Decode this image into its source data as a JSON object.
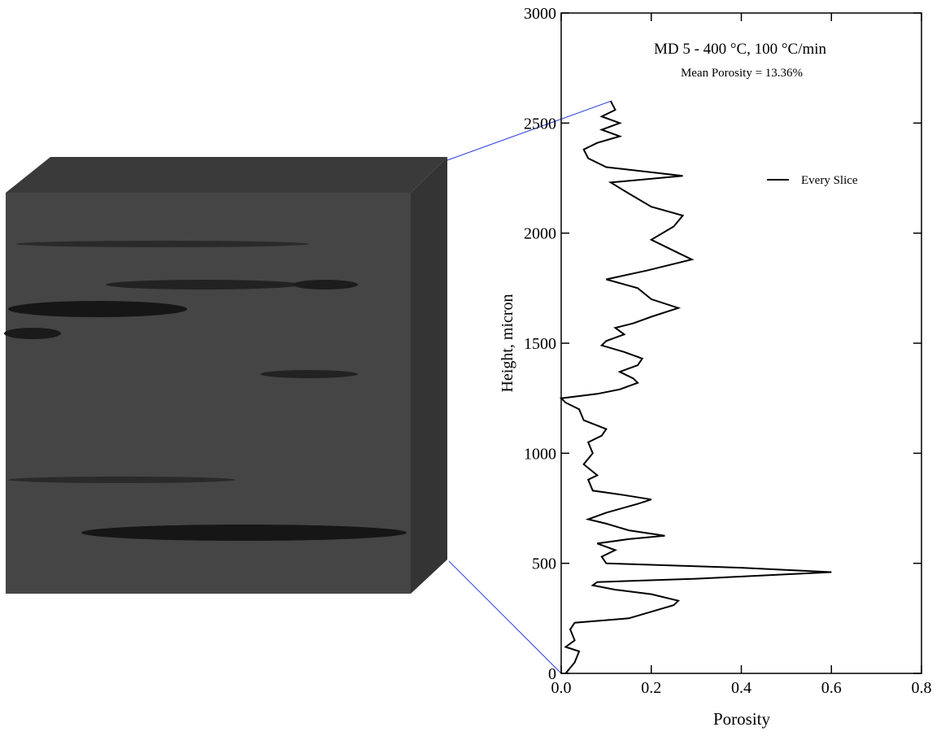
{
  "chart_data": {
    "type": "line",
    "title": "MD 5 - 400 °C, 100 °C/min",
    "subtitle": "Mean Porosity = 13.36%",
    "x_label": "Porosity",
    "y_label": "Height, micron",
    "xlim": [
      0,
      0.8
    ],
    "xticks": [
      {
        "value": 0,
        "label": "0.0"
      },
      0.2,
      0.4,
      0.6,
      0.8
    ],
    "ylim": [
      0,
      3000
    ],
    "yticks": [
      0,
      500,
      1000,
      1500,
      2000,
      2500,
      3000
    ],
    "legend": "right",
    "series": [
      {
        "name": "Every Slice",
        "color": "#000000",
        "x": [
          0.01,
          0.03,
          0.04,
          0.01,
          0.03,
          0.02,
          0.03,
          0.15,
          0.2,
          0.25,
          0.26,
          0.2,
          0.12,
          0.07,
          0.08,
          0.3,
          0.6,
          0.4,
          0.1,
          0.09,
          0.12,
          0.08,
          0.15,
          0.23,
          0.15,
          0.1,
          0.06,
          0.1,
          0.17,
          0.2,
          0.14,
          0.07,
          0.06,
          0.08,
          0.05,
          0.07,
          0.06,
          0.09,
          0.1,
          0.05,
          0.04,
          0.01,
          0.0,
          0.08,
          0.13,
          0.17,
          0.16,
          0.13,
          0.17,
          0.18,
          0.14,
          0.09,
          0.1,
          0.14,
          0.12,
          0.16,
          0.2,
          0.26,
          0.2,
          0.17,
          0.1,
          0.19,
          0.29,
          0.25,
          0.2,
          0.25,
          0.27,
          0.2,
          0.15,
          0.11,
          0.27,
          0.1,
          0.06,
          0.05,
          0.08,
          0.13,
          0.09,
          0.13,
          0.09,
          0.12,
          0.11
        ],
        "values": [
          0,
          50,
          100,
          120,
          150,
          200,
          230,
          250,
          280,
          310,
          330,
          360,
          380,
          400,
          415,
          430,
          460,
          480,
          500,
          530,
          560,
          590,
          610,
          625,
          650,
          680,
          700,
          730,
          770,
          790,
          810,
          830,
          880,
          900,
          950,
          1000,
          1050,
          1080,
          1110,
          1150,
          1200,
          1230,
          1250,
          1270,
          1290,
          1320,
          1340,
          1370,
          1400,
          1430,
          1460,
          1490,
          1510,
          1540,
          1570,
          1590,
          1620,
          1660,
          1700,
          1750,
          1790,
          1830,
          1880,
          1920,
          1970,
          2030,
          2080,
          2120,
          2180,
          2230,
          2260,
          2300,
          2340,
          2380,
          2410,
          2440,
          2470,
          2500,
          2530,
          2560,
          2600
        ]
      }
    ]
  }
}
